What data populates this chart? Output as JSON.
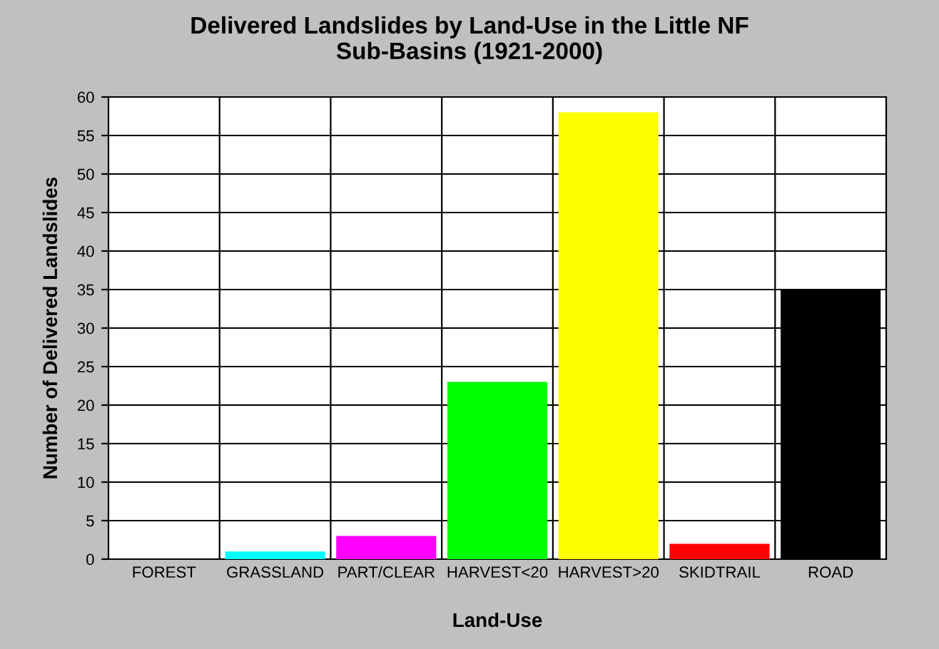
{
  "chart_data": {
    "type": "bar",
    "title": "Delivered Landslides by Land-Use in the Little NF\nSub-Basins (1921-2000)",
    "xlabel": "Land-Use",
    "ylabel": "Number of Delivered Landslides",
    "categories": [
      "FOREST",
      "GRASSLAND",
      "PART/CLEAR",
      "HARVEST<20",
      "HARVEST>20",
      "SKIDTRAIL",
      "ROAD"
    ],
    "values": [
      0,
      1,
      3,
      23,
      58,
      2,
      35
    ],
    "colors": [
      "#008000",
      "#00ffff",
      "#ff00ff",
      "#00ff00",
      "#ffff00",
      "#ff0000",
      "#000000"
    ],
    "ylim": [
      0,
      60
    ],
    "yticks": [
      0,
      5,
      10,
      15,
      20,
      25,
      30,
      35,
      40,
      45,
      50,
      55,
      60
    ],
    "grid": true,
    "legend": false
  }
}
